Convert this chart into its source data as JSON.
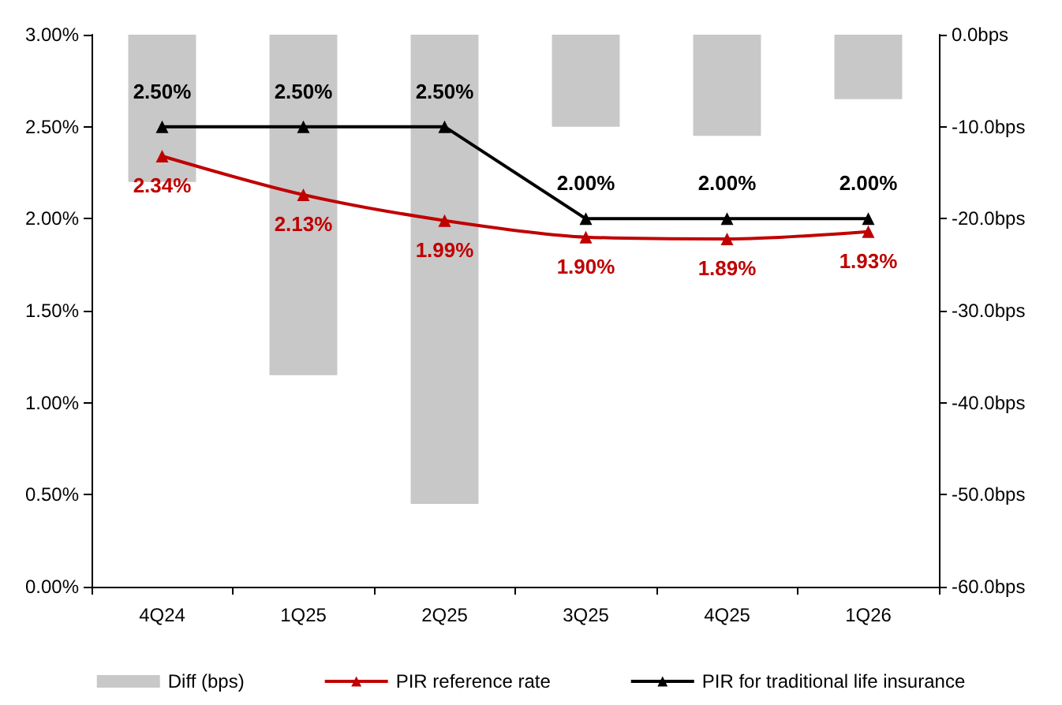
{
  "chart_data": {
    "type": "line",
    "categories": [
      "4Q24",
      "1Q25",
      "2Q25",
      "3Q25",
      "4Q25",
      "1Q26"
    ],
    "series": [
      {
        "name": "Diff (bps)",
        "type": "bar",
        "axis": "y2",
        "color": "#c8c8c8",
        "values": [
          -16,
          -37,
          -51,
          -10,
          -11,
          -7
        ]
      },
      {
        "name": "PIR reference rate",
        "color": "#c00000",
        "values": [
          2.34,
          2.13,
          1.99,
          1.9,
          1.89,
          1.93
        ],
        "value_labels": [
          "2.34%",
          "2.13%",
          "1.99%",
          "1.90%",
          "1.89%",
          "1.93%"
        ]
      },
      {
        "name": "PIR for traditional life insurance",
        "color": "#000000",
        "values": [
          2.5,
          2.5,
          2.5,
          2.0,
          2.0,
          2.0
        ],
        "value_labels": [
          "2.50%",
          "2.50%",
          "2.50%",
          "2.00%",
          "2.00%",
          "2.00%"
        ]
      }
    ],
    "ylim": [
      0,
      3
    ],
    "yticks": [
      {
        "value": 0,
        "label": "0.00%"
      },
      {
        "value": 0.5,
        "label": "0.50%"
      },
      {
        "value": 1,
        "label": "1.00%"
      },
      {
        "value": 1.5,
        "label": "1.50%"
      },
      {
        "value": 2,
        "label": "2.00%"
      },
      {
        "value": 2.5,
        "label": "2.50%"
      },
      {
        "value": 3,
        "label": "3.00%"
      }
    ],
    "y2lim": [
      -60,
      0
    ],
    "y2ticks": [
      {
        "value": -60,
        "label": "-60.0bps"
      },
      {
        "value": -50,
        "label": "-50.0bps"
      },
      {
        "value": -40,
        "label": "-40.0bps"
      },
      {
        "value": -30,
        "label": "-30.0bps"
      },
      {
        "value": -20,
        "label": "-20.0bps"
      },
      {
        "value": -10,
        "label": "-10.0bps"
      },
      {
        "value": 0,
        "label": "0.0bps"
      }
    ],
    "marker": "triangle",
    "line_style": "solid",
    "legend": "bottom",
    "grid": false
  }
}
